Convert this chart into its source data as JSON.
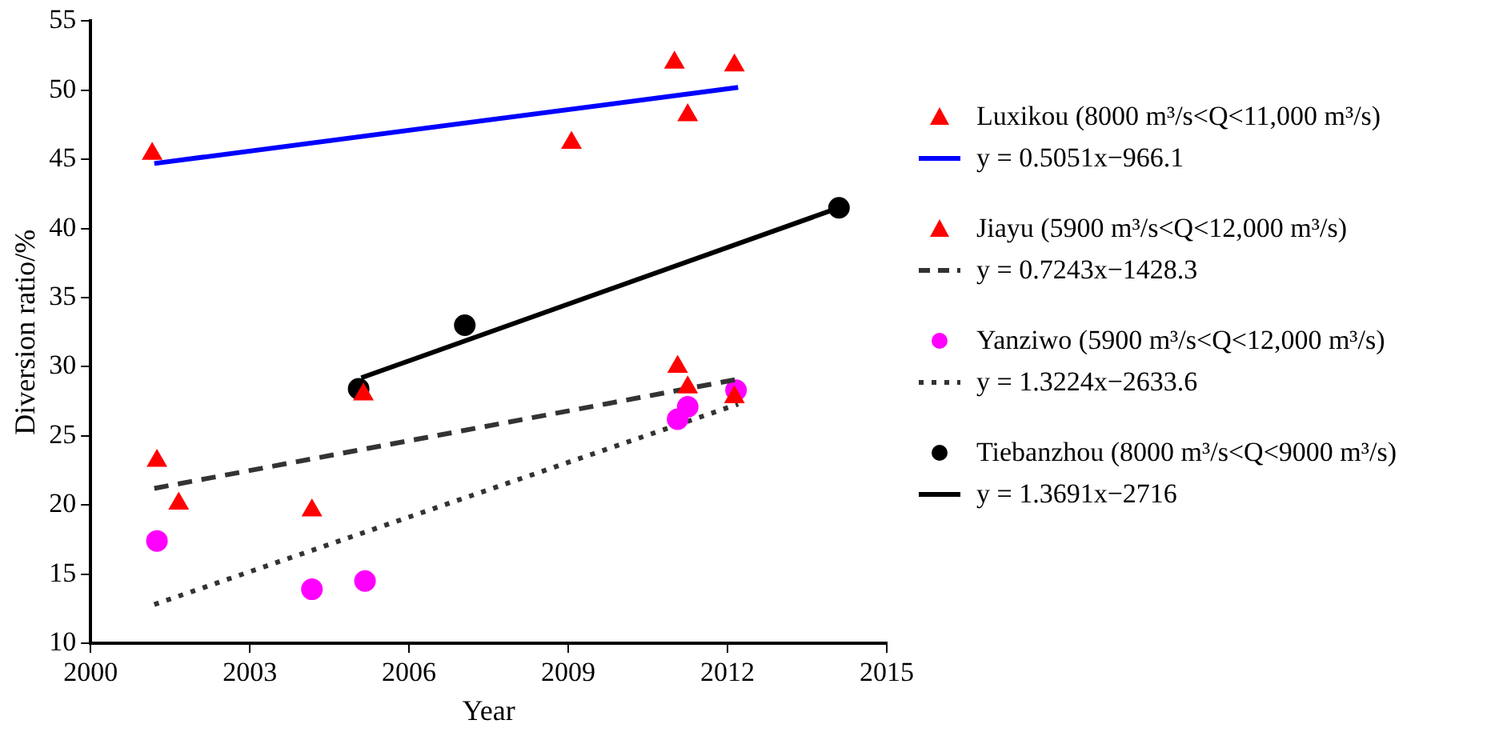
{
  "chart_data": {
    "type": "scatter",
    "xlabel": "Year",
    "ylabel": "Diversion ratio/%",
    "xlim": [
      2000,
      2015
    ],
    "xticks": [
      2000,
      2003,
      2006,
      2009,
      2012,
      2015
    ],
    "ylim": [
      10,
      55
    ],
    "yticks": [
      10,
      15,
      20,
      25,
      30,
      35,
      40,
      45,
      50,
      55
    ],
    "grid": false,
    "legend": "right",
    "series": [
      {
        "name": "Luxikou (8000 m³/s<Q<11,000 m³/s)",
        "marker": "triangle",
        "color": "#ff0000",
        "x": [
          2001.16,
          2009.06,
          2011.0,
          2011.25,
          2012.13
        ],
        "values": [
          45.4,
          46.2,
          52.0,
          48.2,
          51.8
        ]
      },
      {
        "name": "y = 0.5051x−966.1",
        "type": "line",
        "line_style": "solid",
        "marker": "none",
        "color": "#0000ff",
        "x": [
          2001.2,
          2012.2
        ],
        "values": [
          44.7,
          50.2
        ]
      },
      {
        "name": "Jiayu (5900 m³/s<Q<12,000 m³/s)",
        "marker": "triangle",
        "color": "#ff0000",
        "x": [
          2001.25,
          2001.66,
          2004.17,
          2005.14,
          2011.06,
          2011.25,
          2012.13
        ],
        "values": [
          23.2,
          20.1,
          19.6,
          28.0,
          30.0,
          28.5,
          27.8
        ]
      },
      {
        "name": "y = 0.7243x−1428.3",
        "type": "line",
        "line_style": "dashed",
        "marker": "none",
        "color": "#333333",
        "x": [
          2001.2,
          2012.2
        ],
        "values": [
          21.2,
          29.1
        ]
      },
      {
        "name": "Yanziwo (5900 m³/s<Q<12,000 m³/s)",
        "marker": "circle",
        "color": "#ff00ff",
        "x": [
          2001.25,
          2004.17,
          2005.17,
          2011.06,
          2011.25,
          2012.16
        ],
        "values": [
          17.4,
          13.9,
          14.5,
          26.2,
          27.1,
          28.3
        ]
      },
      {
        "name": "y = 1.3224x−2633.6",
        "type": "line",
        "line_style": "dotted",
        "marker": "none",
        "color": "#333333",
        "x": [
          2001.2,
          2012.2
        ],
        "values": [
          12.8,
          27.3
        ]
      },
      {
        "name": "Tiebanzhou (8000 m³/s<Q<9000 m³/s)",
        "marker": "circle",
        "color": "#000000",
        "x": [
          2005.05,
          2007.05,
          2014.1
        ],
        "values": [
          28.4,
          33.0,
          41.5
        ]
      },
      {
        "name": "y = 1.3691x−2716",
        "type": "line",
        "line_style": "solid",
        "marker": "none",
        "color": "#000000",
        "x": [
          2005.1,
          2014.1
        ],
        "values": [
          29.2,
          41.5
        ]
      }
    ]
  }
}
